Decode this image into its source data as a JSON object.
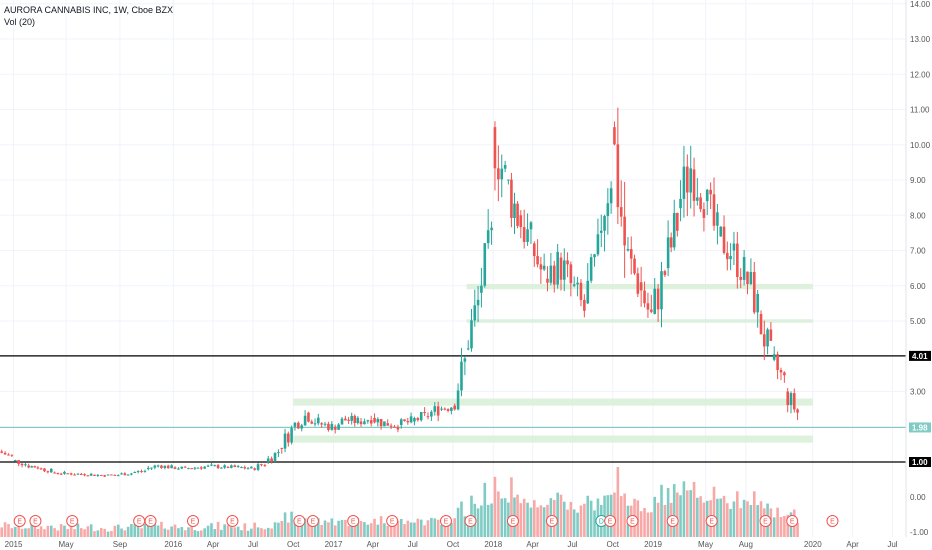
{
  "legend": {
    "title": "AURORA CANNABIS INC, 1W, Cboe BZX",
    "volume": "Vol (20)"
  },
  "colors": {
    "up": "#26a69a",
    "down": "#ef5350",
    "up_vol": "#80cbc4",
    "down_vol": "#f7a9a7",
    "support_zone": "#d9efd9",
    "grid": "#f0f3fa",
    "line_black": "#000000",
    "line_teal": "#80cbc4",
    "earnings": "#ef5350",
    "dividend": "#26a69a"
  },
  "chart_data": {
    "type": "candlestick",
    "y_axis": {
      "ticks": [
        "1.00",
        "2.00",
        "3.00",
        "4.00",
        "5.00",
        "6.00",
        "7.00",
        "8.00",
        "9.00",
        "10.00",
        "11.00",
        "12.00",
        "13.00",
        "14.00"
      ],
      "bottom_labels": [
        "0.00",
        "-1.00"
      ],
      "range": [
        -1.0,
        14.0
      ]
    },
    "x_axis": {
      "labels": [
        "2015",
        "May",
        "Sep",
        "2016",
        "Apr",
        "Jul",
        "Oct",
        "2017",
        "Apr",
        "Jul",
        "Oct",
        "2018",
        "Apr",
        "Jul",
        "Oct",
        "2019",
        "May",
        "Aug",
        "2020",
        "Apr",
        "Jul"
      ],
      "range": [
        "2014-12",
        "2020-08"
      ]
    },
    "horizontal_lines": [
      {
        "value": 4.01,
        "label": "4.01",
        "color": "black"
      },
      {
        "value": 1.98,
        "label": "1.98",
        "color": "teal"
      },
      {
        "value": 1.0,
        "label": "1.00",
        "color": "black"
      }
    ],
    "zones": [
      {
        "from": "2016-10",
        "to": "2020-01",
        "low": 2.6,
        "high": 2.8
      },
      {
        "from": "2016-10",
        "to": "2020-01",
        "low": 1.55,
        "high": 1.75
      },
      {
        "from": "2017-11",
        "to": "2020-01",
        "low": 5.9,
        "high": 6.05
      },
      {
        "from": "2017-11",
        "to": "2020-01",
        "low": 4.95,
        "high": 5.05
      }
    ],
    "earnings_markers": [
      "E",
      "E",
      "E",
      "E",
      "E",
      "E",
      "E",
      "E",
      "E",
      "E",
      "E",
      "E",
      "E",
      "E",
      "E",
      "D",
      "E",
      "E",
      "E",
      "E",
      "E",
      "E",
      "E"
    ],
    "series": [
      {
        "name": "price",
        "points": [
          [
            "2014-12-01",
            1.3,
            1.15
          ],
          [
            "2015-01-01",
            1.05,
            0.95
          ],
          [
            "2015-02-01",
            0.9,
            0.85
          ],
          [
            "2015-03-01",
            0.82,
            0.75
          ],
          [
            "2015-04-01",
            0.7,
            0.68
          ],
          [
            "2015-05-01",
            0.68,
            0.66
          ],
          [
            "2015-06-01",
            0.66,
            0.65
          ],
          [
            "2015-07-01",
            0.64,
            0.62
          ],
          [
            "2015-08-01",
            0.62,
            0.63
          ],
          [
            "2015-09-01",
            0.65,
            0.68
          ],
          [
            "2015-10-01",
            0.7,
            0.75
          ],
          [
            "2015-11-01",
            0.8,
            0.9
          ],
          [
            "2015-12-01",
            0.9,
            0.85
          ],
          [
            "2016-01-01",
            0.85,
            0.82
          ],
          [
            "2016-02-01",
            0.82,
            0.85
          ],
          [
            "2016-03-01",
            0.85,
            0.88
          ],
          [
            "2016-04-01",
            0.88,
            0.86
          ],
          [
            "2016-05-01",
            0.86,
            0.85
          ],
          [
            "2016-06-01",
            0.85,
            0.82
          ],
          [
            "2016-07-01",
            0.82,
            0.95
          ],
          [
            "2016-08-01",
            1.0,
            1.3
          ],
          [
            "2016-09-01",
            1.4,
            1.9
          ],
          [
            "2016-10-01",
            2.0,
            2.3
          ],
          [
            "2016-11-01",
            2.4,
            2.1
          ],
          [
            "2016-12-01",
            2.1,
            2.0
          ],
          [
            "2017-01-01",
            2.0,
            2.2
          ],
          [
            "2017-02-01",
            2.2,
            2.15
          ],
          [
            "2017-03-01",
            2.15,
            2.25
          ],
          [
            "2017-04-01",
            2.25,
            2.1
          ],
          [
            "2017-05-01",
            2.1,
            2.05
          ],
          [
            "2017-06-01",
            2.05,
            2.15
          ],
          [
            "2017-07-01",
            2.15,
            2.3
          ],
          [
            "2017-08-01",
            2.3,
            2.5
          ],
          [
            "2017-09-01",
            2.5,
            2.6
          ],
          [
            "2017-10-01",
            2.6,
            3.8
          ],
          [
            "2017-11-01",
            4.2,
            5.5
          ],
          [
            "2017-12-01",
            5.8,
            7.2
          ],
          [
            "2018-01-01",
            10.5,
            9.0
          ],
          [
            "2018-02-01",
            9.0,
            8.0
          ],
          [
            "2018-03-01",
            8.0,
            7.2
          ],
          [
            "2018-04-01",
            7.2,
            6.2
          ],
          [
            "2018-05-01",
            6.2,
            6.6
          ],
          [
            "2018-06-01",
            6.8,
            6.0
          ],
          [
            "2018-07-01",
            6.0,
            5.3
          ],
          [
            "2018-08-01",
            5.5,
            6.8
          ],
          [
            "2018-09-01",
            7.5,
            9.3
          ],
          [
            "2018-10-01",
            10.5,
            7.2
          ],
          [
            "2018-11-01",
            7.0,
            6.1
          ],
          [
            "2018-12-01",
            6.1,
            5.1
          ],
          [
            "2019-01-01",
            5.2,
            6.4
          ],
          [
            "2019-02-01",
            6.5,
            7.8
          ],
          [
            "2019-03-01",
            8.2,
            9.4
          ],
          [
            "2019-04-01",
            9.3,
            8.6
          ],
          [
            "2019-05-01",
            8.4,
            7.4
          ],
          [
            "2019-06-01",
            7.4,
            7.0
          ],
          [
            "2019-07-01",
            7.0,
            6.4
          ],
          [
            "2019-08-01",
            6.4,
            5.4
          ],
          [
            "2019-09-01",
            5.2,
            3.9
          ],
          [
            "2019-10-01",
            3.9,
            3.3
          ],
          [
            "2019-11-01",
            3.0,
            2.4
          ],
          [
            "2019-12-01",
            2.4,
            1.98
          ]
        ]
      }
    ]
  }
}
